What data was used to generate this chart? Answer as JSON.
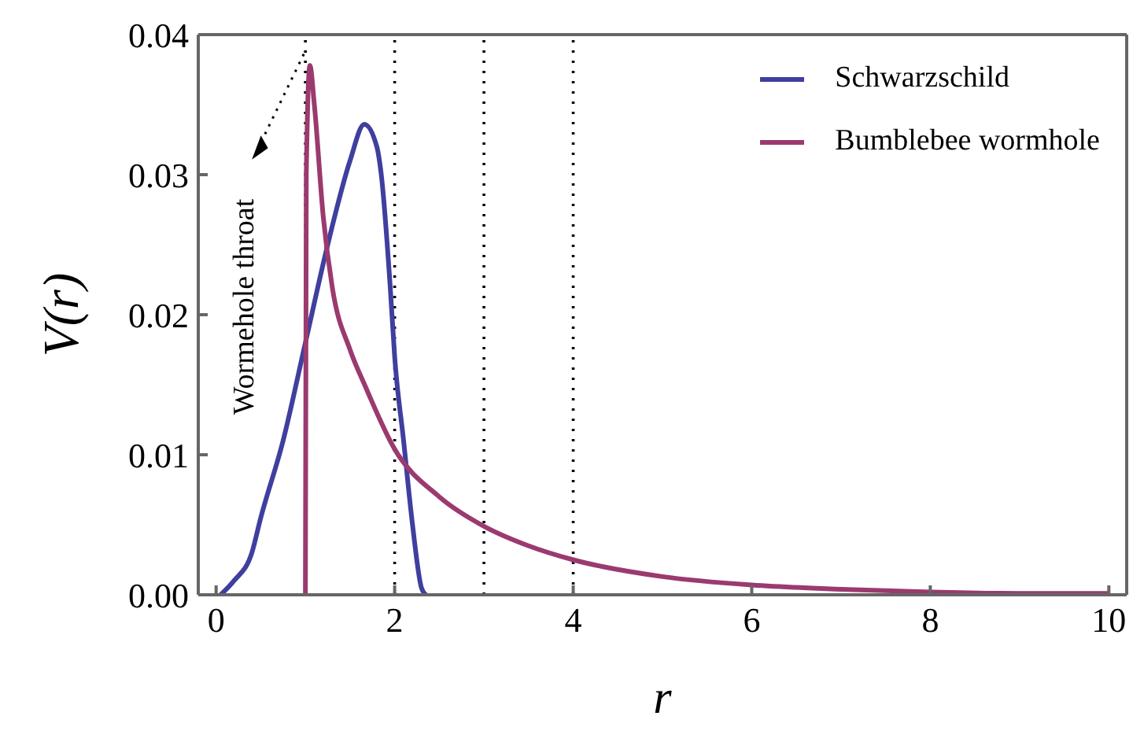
{
  "chart_data": {
    "type": "line",
    "xlabel": "r",
    "ylabel": "V(r)",
    "xlim": [
      -0.2,
      10.2
    ],
    "xticks": [
      0,
      2,
      4,
      6,
      8,
      10
    ],
    "ylim": [
      0,
      0.04
    ],
    "yticks": [
      {
        "value": 0,
        "label": "0.00"
      },
      {
        "value": 0.01,
        "label": "0.01"
      },
      {
        "value": 0.02,
        "label": "0.02"
      },
      {
        "value": 0.03,
        "label": "0.03"
      },
      {
        "value": 0.04,
        "label": "0.04"
      }
    ],
    "legend": "top right",
    "line_style": "solid",
    "marker": "none",
    "annotations": [
      "Wormehole throat"
    ],
    "ref_lines": [
      {
        "axis": "x",
        "value": 1,
        "line_style": "dotted",
        "color": "#000000"
      },
      {
        "axis": "x",
        "value": 2,
        "line_style": "dotted",
        "color": "#000000"
      },
      {
        "axis": "x",
        "value": 3,
        "line_style": "dotted",
        "color": "#000000"
      },
      {
        "axis": "x",
        "value": 4,
        "line_style": "dotted",
        "color": "#000000"
      }
    ],
    "series": [
      {
        "name": "Schwarzschild",
        "color": "#3f3f9f",
        "x": [
          0.05,
          0.2,
          0.4,
          0.5,
          0.75,
          1.0,
          1.25,
          1.5,
          1.66,
          1.8,
          1.85,
          1.95,
          2.0,
          2.1,
          2.2,
          2.3,
          2.35
        ],
        "values": [
          0,
          0.001,
          0.003,
          0.0055,
          0.011,
          0.018,
          0.025,
          0.031,
          0.0336,
          0.032,
          0.03,
          0.022,
          0.017,
          0.011,
          0.005,
          0.0005,
          0
        ]
      },
      {
        "name": "Bumblebee wormhole",
        "color": "#9b3a6f",
        "x": [
          1.0,
          1.01,
          1.05,
          1.1,
          1.2,
          1.3,
          1.5,
          1.67,
          2,
          2.5,
          3,
          3.5,
          4,
          5,
          6,
          7,
          8,
          9,
          10
        ],
        "values": [
          0,
          0.03,
          0.0378,
          0.035,
          0.027,
          0.022,
          0.0175,
          0.0149,
          0.0104,
          0.007,
          0.0049,
          0.0035,
          0.0025,
          0.0013,
          0.0007,
          0.0004,
          0.0002,
          0.0001,
          0.0001
        ]
      }
    ]
  }
}
